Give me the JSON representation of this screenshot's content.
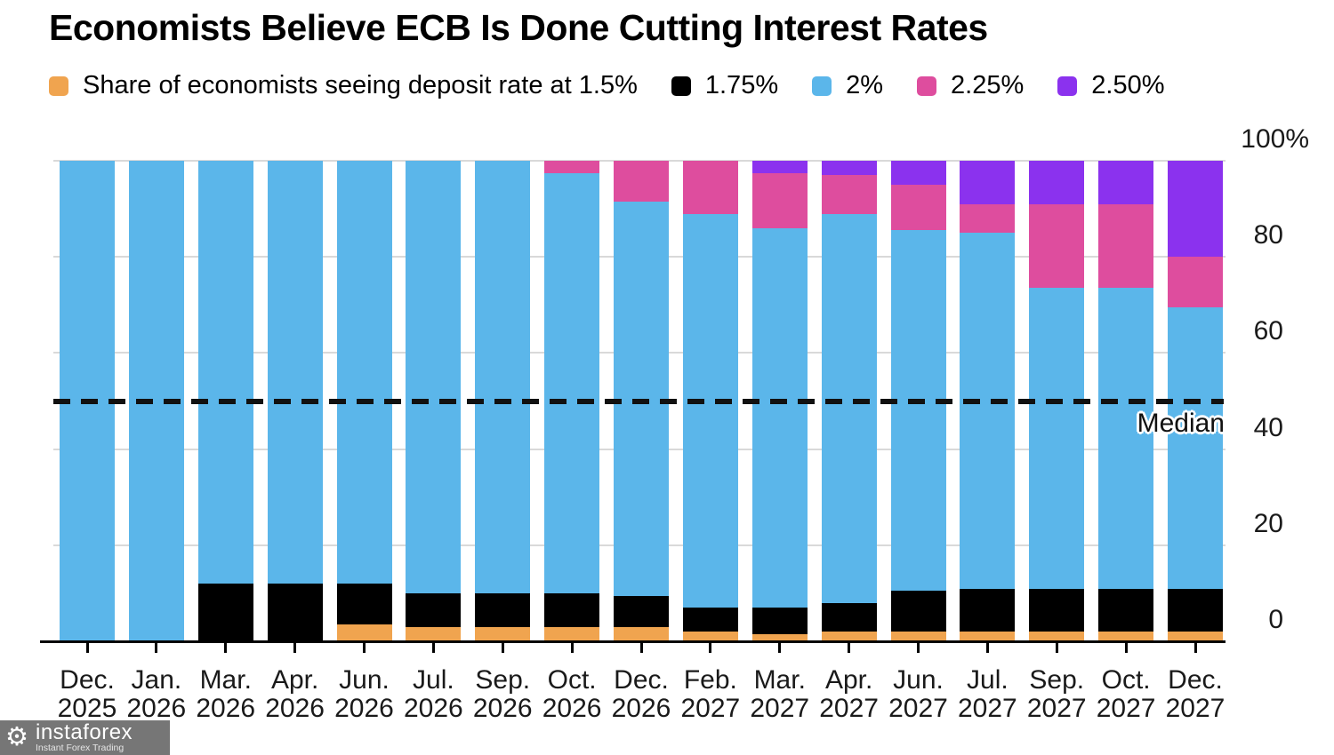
{
  "title": "Economists Believe ECB Is Done Cutting Interest Rates",
  "legend": {
    "items": [
      {
        "label": "Share of economists seeing deposit rate at 1.5%",
        "color": "#F0A44F"
      },
      {
        "label": "1.75%",
        "color": "#000000"
      },
      {
        "label": "2%",
        "color": "#5BB6EA"
      },
      {
        "label": "2.25%",
        "color": "#DE4D9E"
      },
      {
        "label": "2.50%",
        "color": "#8B32EE"
      }
    ]
  },
  "chart_data": {
    "type": "bar",
    "stacked": true,
    "unit": "percent of economists",
    "title": "Economists Believe ECB Is Done Cutting Interest Rates",
    "categories": [
      {
        "month": "Dec.",
        "year": "2025"
      },
      {
        "month": "Jan.",
        "year": "2026"
      },
      {
        "month": "Mar.",
        "year": "2026"
      },
      {
        "month": "Apr.",
        "year": "2026"
      },
      {
        "month": "Jun.",
        "year": "2026"
      },
      {
        "month": "Jul.",
        "year": "2026"
      },
      {
        "month": "Sep.",
        "year": "2026"
      },
      {
        "month": "Oct.",
        "year": "2026"
      },
      {
        "month": "Dec.",
        "year": "2026"
      },
      {
        "month": "Feb.",
        "year": "2027"
      },
      {
        "month": "Mar.",
        "year": "2027"
      },
      {
        "month": "Apr.",
        "year": "2027"
      },
      {
        "month": "Jun.",
        "year": "2027"
      },
      {
        "month": "Jul.",
        "year": "2027"
      },
      {
        "month": "Sep.",
        "year": "2027"
      },
      {
        "month": "Oct.",
        "year": "2027"
      },
      {
        "month": "Dec.",
        "year": "2027"
      }
    ],
    "series": [
      {
        "name": "1.5%",
        "color": "#F0A44F",
        "values": [
          0,
          0,
          0,
          0,
          3.5,
          3,
          3,
          3,
          3,
          2,
          1.5,
          2,
          2,
          2,
          2,
          2,
          2
        ]
      },
      {
        "name": "1.75%",
        "color": "#000000",
        "values": [
          0,
          0,
          12,
          12,
          8.5,
          7,
          7,
          7,
          6.5,
          5,
          5.5,
          6,
          8.5,
          9,
          9,
          9,
          9
        ]
      },
      {
        "name": "2%",
        "color": "#5BB6EA",
        "values": [
          100,
          100,
          88,
          88,
          88,
          90,
          90,
          87.5,
          82,
          82,
          79,
          81,
          75,
          74,
          62.5,
          62.5,
          58.5
        ]
      },
      {
        "name": "2.25%",
        "color": "#DE4D9E",
        "values": [
          0,
          0,
          0,
          0,
          0,
          0,
          0,
          2.5,
          8.5,
          11,
          11.5,
          8,
          9.5,
          6,
          17.5,
          17.5,
          10.5
        ]
      },
      {
        "name": "2.50%",
        "color": "#8B32EE",
        "values": [
          0,
          0,
          0,
          0,
          0,
          0,
          0,
          0,
          0,
          0,
          2.5,
          3,
          5,
          9,
          9,
          9,
          20
        ]
      }
    ],
    "ylim": [
      0,
      100
    ],
    "y_ticks": [
      {
        "label": "100%",
        "value": 100
      },
      {
        "label": "80",
        "value": 80
      },
      {
        "label": "60",
        "value": 60
      },
      {
        "label": "40",
        "value": 40
      },
      {
        "label": "20",
        "value": 20
      },
      {
        "label": "0",
        "value": 0
      }
    ],
    "grid": true,
    "legend_position": "top",
    "median_line": {
      "label": "Median",
      "value": 50
    }
  },
  "watermark": {
    "brand": "instaforex",
    "tagline": "Instant Forex Trading",
    "icon": "gear-icon"
  }
}
